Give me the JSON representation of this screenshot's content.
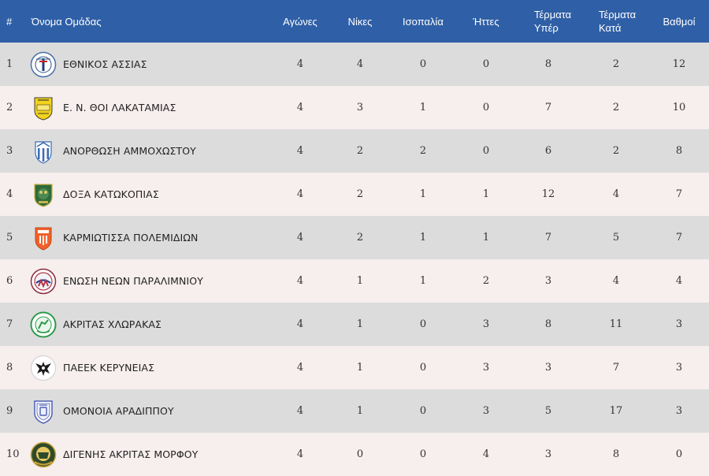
{
  "headers": {
    "pos": "#",
    "team": "Όνομα Ομάδας",
    "played": "Αγώνες",
    "wins": "Νίκες",
    "draws": "Ισοπαλία",
    "losses": "Ήττες",
    "gf_line1": "Τέρματα",
    "gf_line2": "Υπέρ",
    "ga_line1": "Τέρματα",
    "ga_line2": "Κατά",
    "points": "Βαθμοί"
  },
  "rows": [
    {
      "pos": "1",
      "team": "ΕΘΝΙΚΟΣ ΑΣΣΙΑΣ",
      "logo": "ethnikos-assias-crest-icon",
      "played": "4",
      "wins": "4",
      "draws": "0",
      "losses": "0",
      "gf": "8",
      "ga": "2",
      "pts": "12"
    },
    {
      "pos": "2",
      "team": "Ε. Ν. ΘΟΙ ΛΑΚΑΤΑΜΙΑΣ",
      "logo": "thoi-lakatamias-crest-icon",
      "played": "4",
      "wins": "3",
      "draws": "1",
      "losses": "0",
      "gf": "7",
      "ga": "2",
      "pts": "10"
    },
    {
      "pos": "3",
      "team": "ΑΝΟΡΘΩΣΗ ΑΜΜΟΧΩΣΤΟΥ",
      "logo": "anorthosis-crest-icon",
      "played": "4",
      "wins": "2",
      "draws": "2",
      "losses": "0",
      "gf": "6",
      "ga": "2",
      "pts": "8"
    },
    {
      "pos": "4",
      "team": "ΔΟΞΑ ΚΑΤΩΚΟΠΙΑΣ",
      "logo": "doxa-katokopias-crest-icon",
      "played": "4",
      "wins": "2",
      "draws": "1",
      "losses": "1",
      "gf": "12",
      "ga": "4",
      "pts": "7"
    },
    {
      "pos": "5",
      "team": "ΚΑΡΜΙΩΤΙΣΣΑ ΠΟΛΕΜΙΔΙΩΝ",
      "logo": "karmiotissa-crest-icon",
      "played": "4",
      "wins": "2",
      "draws": "1",
      "losses": "1",
      "gf": "7",
      "ga": "5",
      "pts": "7"
    },
    {
      "pos": "6",
      "team": "ΕΝΩΣΗ ΝΕΩΝ ΠΑΡΑΛΙΜΝΙΟΥ",
      "logo": "enp-paralimni-crest-icon",
      "played": "4",
      "wins": "1",
      "draws": "1",
      "losses": "2",
      "gf": "3",
      "ga": "4",
      "pts": "4"
    },
    {
      "pos": "7",
      "team": "ΑΚΡΙΤΑΣ ΧΛΩΡΑΚΑΣ",
      "logo": "akritas-chlorakas-crest-icon",
      "played": "4",
      "wins": "1",
      "draws": "0",
      "losses": "3",
      "gf": "8",
      "ga": "11",
      "pts": "3"
    },
    {
      "pos": "8",
      "team": "ΠΑΕΕΚ ΚΕΡΥΝΕΙΑΣ",
      "logo": "paeek-eagle-crest-icon",
      "played": "4",
      "wins": "1",
      "draws": "0",
      "losses": "3",
      "gf": "3",
      "ga": "7",
      "pts": "3"
    },
    {
      "pos": "9",
      "team": "ΟΜΟΝΟΙΑ ΑΡΑΔΙΠΠΟΥ",
      "logo": "omonoia-aradippou-crest-icon",
      "played": "4",
      "wins": "1",
      "draws": "0",
      "losses": "3",
      "gf": "5",
      "ga": "17",
      "pts": "3"
    },
    {
      "pos": "10",
      "team": "ΔΙΓΕΝΗΣ ΑΚΡΙΤΑΣ ΜΟΡΦΟΥ",
      "logo": "digenis-morfou-crest-icon",
      "played": "4",
      "wins": "0",
      "draws": "0",
      "losses": "4",
      "gf": "3",
      "ga": "8",
      "pts": "0"
    }
  ],
  "colors": {
    "header_bg": "#2f5fa6",
    "row_odd": "#dcdcdc",
    "row_even": "#f7eeee"
  }
}
